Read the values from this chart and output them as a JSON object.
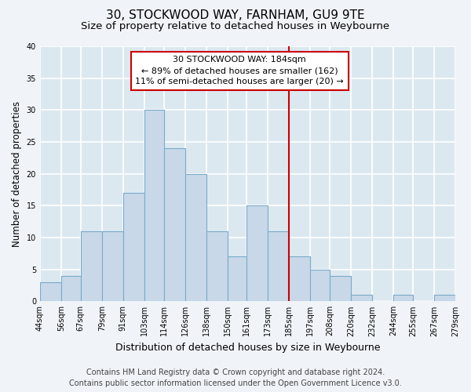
{
  "title": "30, STOCKWOOD WAY, FARNHAM, GU9 9TE",
  "subtitle": "Size of property relative to detached houses in Weybourne",
  "xlabel": "Distribution of detached houses by size in Weybourne",
  "ylabel": "Number of detached properties",
  "bar_edges": [
    44,
    56,
    67,
    79,
    91,
    103,
    114,
    126,
    138,
    150,
    161,
    173,
    185,
    197,
    208,
    220,
    232,
    244,
    255,
    267,
    279
  ],
  "bar_heights": [
    3,
    4,
    11,
    11,
    17,
    30,
    24,
    20,
    11,
    7,
    15,
    11,
    7,
    5,
    4,
    1,
    0,
    1,
    0,
    1
  ],
  "bar_color": "#c8d8e8",
  "bar_edgecolor": "#7aaaca",
  "vline_x": 185,
  "vline_color": "#cc0000",
  "annotation_title": "30 STOCKWOOD WAY: 184sqm",
  "annotation_line1": "← 89% of detached houses are smaller (162)",
  "annotation_line2": "11% of semi-detached houses are larger (20) →",
  "annotation_box_facecolor": "#ffffff",
  "annotation_box_edgecolor": "#cc0000",
  "ylim": [
    0,
    40
  ],
  "yticks": [
    0,
    5,
    10,
    15,
    20,
    25,
    30,
    35,
    40
  ],
  "tick_labels": [
    "44sqm",
    "56sqm",
    "67sqm",
    "79sqm",
    "91sqm",
    "103sqm",
    "114sqm",
    "126sqm",
    "138sqm",
    "150sqm",
    "161sqm",
    "173sqm",
    "185sqm",
    "197sqm",
    "208sqm",
    "220sqm",
    "232sqm",
    "244sqm",
    "255sqm",
    "267sqm",
    "279sqm"
  ],
  "footer_line1": "Contains HM Land Registry data © Crown copyright and database right 2024.",
  "footer_line2": "Contains public sector information licensed under the Open Government Licence v3.0.",
  "fig_bg_color": "#f0f4f8",
  "plot_bg_color": "#dce8f0",
  "grid_color": "#ffffff",
  "title_fontsize": 11,
  "subtitle_fontsize": 9.5,
  "xlabel_fontsize": 9,
  "ylabel_fontsize": 8.5,
  "tick_fontsize": 7,
  "footer_fontsize": 7,
  "annot_fontsize": 8
}
